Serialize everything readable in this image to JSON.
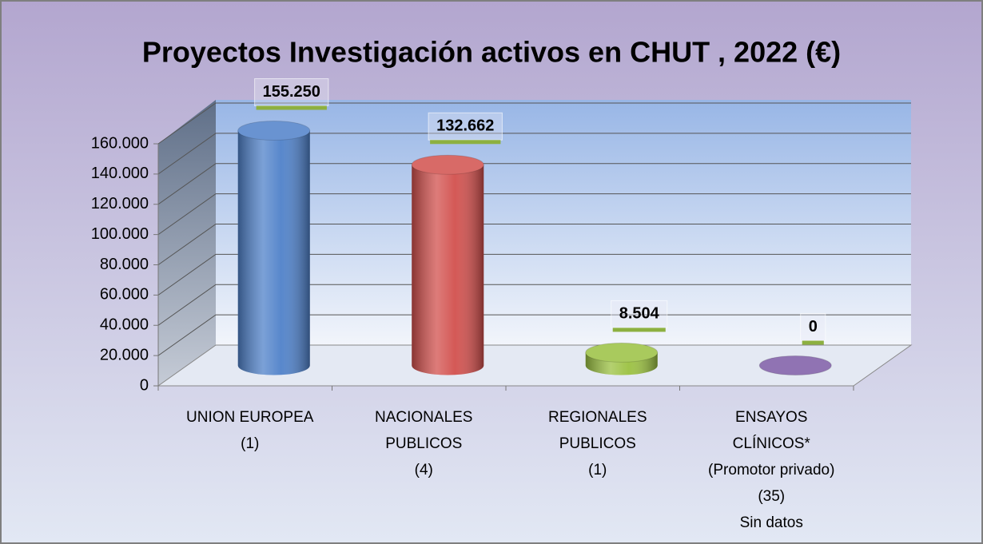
{
  "chart_data": {
    "type": "cylinder-bar",
    "title": "Proyectos Investigación activos  en CHUT , 2022 (€)",
    "categories": [
      [
        "UNION EUROPEA",
        "(1)"
      ],
      [
        "NACIONALES",
        "PUBLICOS",
        "(4)"
      ],
      [
        "REGIONALES",
        "PUBLICOS",
        "(1)"
      ],
      [
        "ENSAYOS",
        "CLÍNICOS*",
        "(Promotor privado)",
        "(35)",
        "Sin datos"
      ]
    ],
    "values": [
      155250,
      132662,
      8504,
      0
    ],
    "value_labels": [
      "155.250",
      "132.662",
      "8.504",
      "0"
    ],
    "colors": [
      "#4f81c9",
      "#d2504d",
      "#9bc141",
      "#7d5ba6"
    ],
    "ylim": [
      0,
      160000
    ],
    "yticks": [
      0,
      {
        "value": 20000,
        "label": "20.000"
      },
      {
        "value": 40000,
        "label": "40.000"
      },
      {
        "value": 60000,
        "label": "60.000"
      },
      {
        "value": 80000,
        "label": "80.000"
      },
      {
        "value": 100000,
        "label": "100.000"
      },
      {
        "value": 120000,
        "label": "120.000"
      },
      {
        "value": 140000,
        "label": "140.000"
      },
      {
        "value": 160000,
        "label": "160.000"
      }
    ],
    "grid": true
  }
}
